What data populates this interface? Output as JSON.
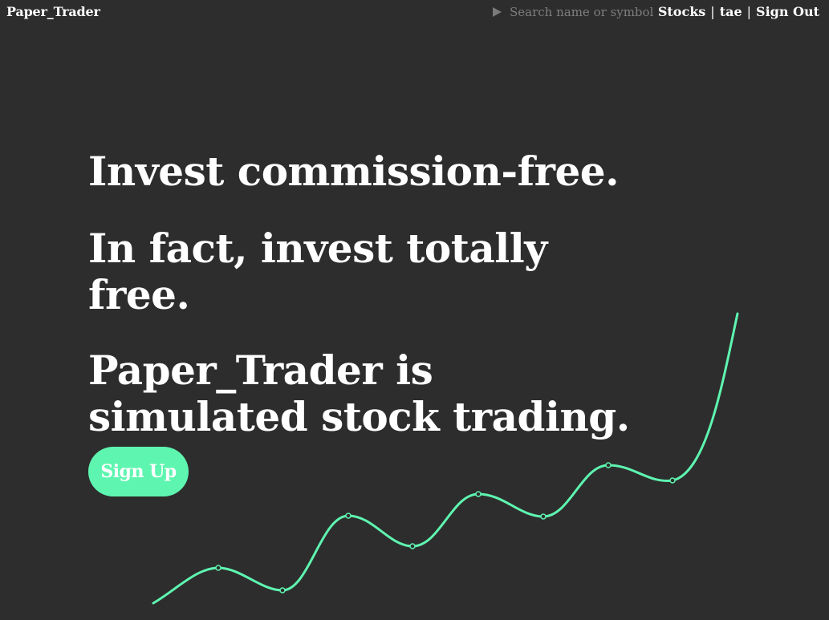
{
  "nav": {
    "brand": "Paper_Trader",
    "search_placeholder": "Search name or symbol",
    "links": {
      "stocks": "Stocks",
      "user": "tae",
      "sign_out": "Sign Out"
    },
    "separator": "|"
  },
  "hero": {
    "line1": "Invest commission-free.",
    "line2": "In fact, invest totally free.",
    "line3a": "Paper_Trader is",
    "line3b": "simulated stock trading."
  },
  "signup_label": "Sign Up",
  "colors": {
    "background": "#2d2d2d",
    "accent": "#5ef5b0",
    "text": "#ffffff"
  }
}
